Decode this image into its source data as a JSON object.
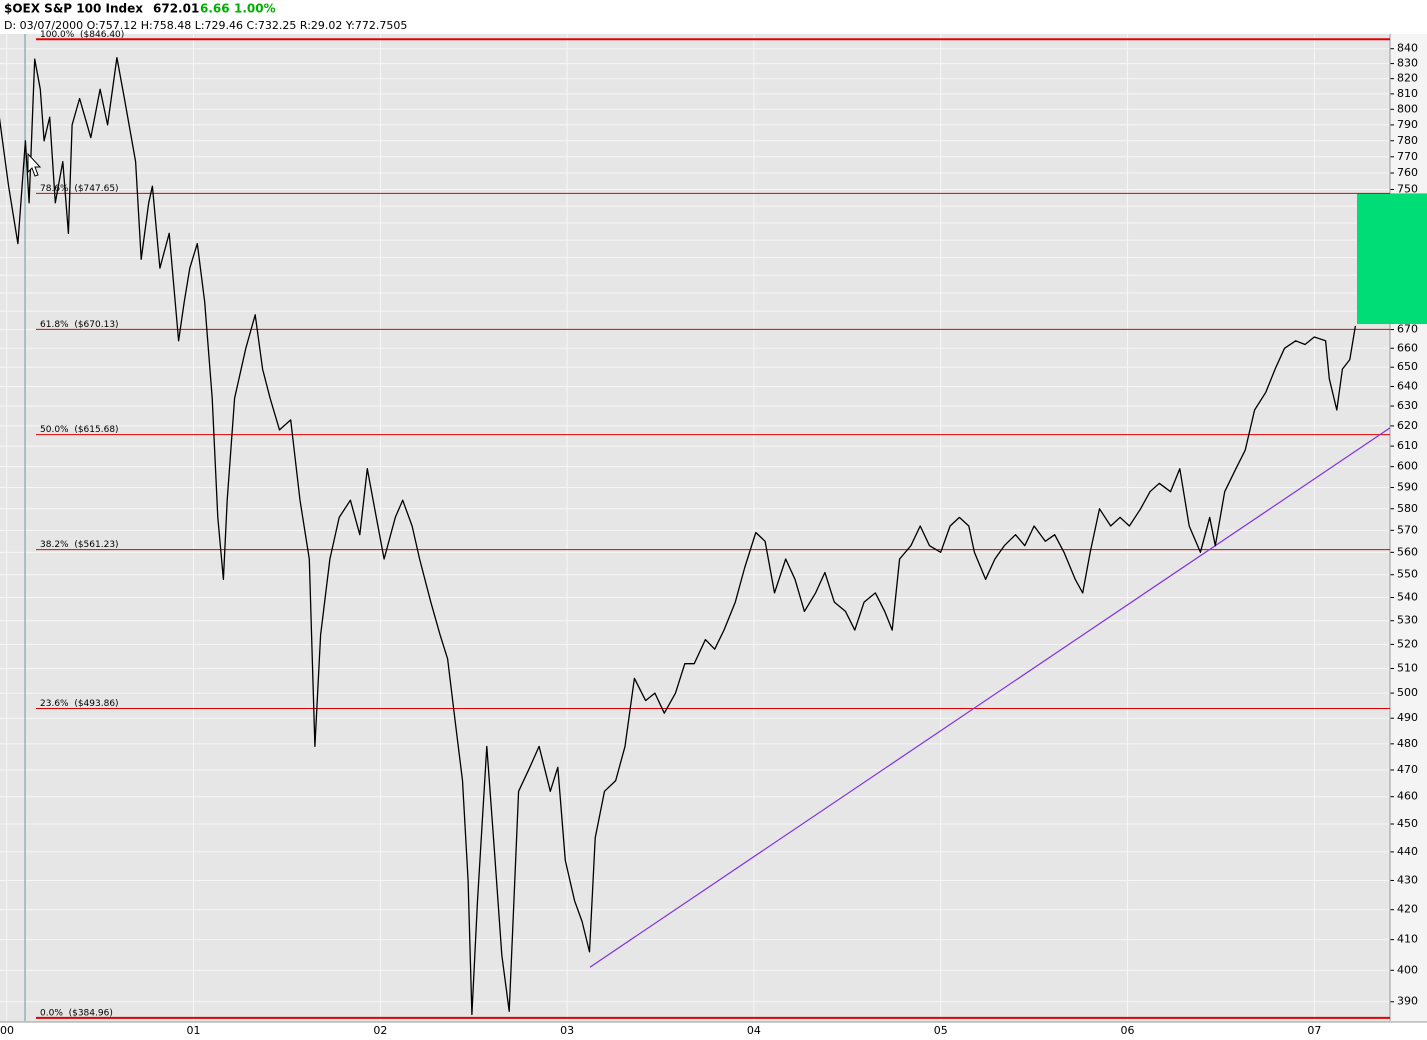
{
  "header": {
    "symbol": "$OEX S&P 100 Index",
    "last": "672.01",
    "change": "6.66",
    "change_pct": "1.00%",
    "details": "D: 03/07/2000 O:757.12 H:758.48 L:729.46 C:732.25 R:29.02 Y:772.7505"
  },
  "chart_data": {
    "type": "line",
    "color": "#000000",
    "log_scale": true,
    "grid": true,
    "xlim": [
      1999.964,
      2007.405
    ],
    "ylim": [
      384,
      850
    ],
    "xticks": [
      {
        "value": 2000,
        "label": "00"
      },
      {
        "value": 2001,
        "label": "01"
      },
      {
        "value": 2002,
        "label": "02"
      },
      {
        "value": 2003,
        "label": "03"
      },
      {
        "value": 2004,
        "label": "04"
      },
      {
        "value": 2005,
        "label": "05"
      },
      {
        "value": 2006,
        "label": "06"
      },
      {
        "value": 2007,
        "label": "07"
      }
    ],
    "yticks": [
      390,
      400,
      410,
      420,
      430,
      440,
      450,
      460,
      470,
      480,
      490,
      500,
      510,
      520,
      530,
      540,
      550,
      560,
      570,
      580,
      590,
      600,
      610,
      620,
      630,
      640,
      650,
      660,
      670,
      680,
      690,
      700,
      710,
      720,
      730,
      740,
      750,
      760,
      770,
      780,
      790,
      800,
      810,
      820,
      830,
      840
    ],
    "x": [
      1999.96,
      2000.01,
      2000.06,
      2000.1,
      2000.12,
      2000.15,
      2000.18,
      2000.2,
      2000.23,
      2000.26,
      2000.3,
      2000.33,
      2000.35,
      2000.39,
      2000.45,
      2000.5,
      2000.54,
      2000.59,
      2000.63,
      2000.69,
      2000.72,
      2000.76,
      2000.78,
      2000.82,
      2000.87,
      2000.92,
      2000.95,
      2000.98,
      2001.02,
      2001.06,
      2001.1,
      2001.13,
      2001.16,
      2001.18,
      2001.22,
      2001.28,
      2001.33,
      2001.37,
      2001.41,
      2001.46,
      2001.52,
      2001.57,
      2001.62,
      2001.65,
      2001.68,
      2001.73,
      2001.78,
      2001.84,
      2001.89,
      2001.93,
      2001.97,
      2002.02,
      2002.08,
      2002.12,
      2002.17,
      2002.21,
      2002.27,
      2002.32,
      2002.36,
      2002.4,
      2002.44,
      2002.47,
      2002.49,
      2002.52,
      2002.57,
      2002.61,
      2002.65,
      2002.69,
      2002.74,
      2002.8,
      2002.85,
      2002.91,
      2002.95,
      2002.99,
      2003.04,
      2003.08,
      2003.12,
      2003.15,
      2003.2,
      2003.26,
      2003.31,
      2003.36,
      2003.42,
      2003.47,
      2003.52,
      2003.58,
      2003.63,
      2003.68,
      2003.74,
      2003.79,
      2003.84,
      2003.9,
      2003.95,
      2004.01,
      2004.06,
      2004.11,
      2004.17,
      2004.22,
      2004.27,
      2004.33,
      2004.38,
      2004.43,
      2004.49,
      2004.54,
      2004.59,
      2004.65,
      2004.7,
      2004.74,
      2004.78,
      2004.84,
      2004.89,
      2004.94,
      2005.0,
      2005.05,
      2005.1,
      2005.15,
      2005.18,
      2005.24,
      2005.29,
      2005.34,
      2005.4,
      2005.45,
      2005.5,
      2005.56,
      2005.61,
      2005.66,
      2005.72,
      2005.76,
      2005.8,
      2005.85,
      2005.91,
      2005.96,
      2006.01,
      2006.07,
      2006.12,
      2006.17,
      2006.23,
      2006.28,
      2006.33,
      2006.39,
      2006.44,
      2006.47,
      2006.52,
      2006.58,
      2006.63,
      2006.68,
      2006.74,
      2006.79,
      2006.84,
      2006.9,
      2006.95,
      2007.0,
      2007.06,
      2007.08,
      2007.12,
      2007.15,
      2007.19,
      2007.22
    ],
    "values": [
      795,
      752,
      718,
      780,
      742,
      833,
      813,
      780,
      795,
      742,
      767,
      724,
      790,
      807,
      782,
      813,
      790,
      834,
      807,
      767,
      709,
      742,
      752,
      704,
      724,
      664,
      685,
      704,
      718,
      685,
      634,
      576,
      548,
      584,
      634,
      660,
      678,
      649,
      634,
      618,
      623,
      584,
      557,
      479,
      524,
      557,
      576,
      584,
      568,
      599,
      580,
      557,
      576,
      584,
      572,
      557,
      538,
      524,
      514,
      489,
      466,
      430,
      386,
      423,
      479,
      441,
      405,
      387,
      462,
      471,
      479,
      462,
      471,
      437,
      423,
      416,
      406,
      445,
      462,
      466,
      479,
      506,
      497,
      500,
      492,
      500,
      512,
      512,
      522,
      518,
      526,
      538,
      553,
      569,
      565,
      542,
      557,
      548,
      534,
      542,
      551,
      538,
      534,
      526,
      538,
      542,
      534,
      526,
      557,
      563,
      572,
      563,
      560,
      572,
      576,
      572,
      560,
      548,
      557,
      563,
      568,
      563,
      572,
      565,
      568,
      560,
      548,
      542,
      560,
      580,
      572,
      576,
      572,
      580,
      588,
      592,
      588,
      599,
      572,
      560,
      576,
      563,
      588,
      599,
      608,
      628,
      637,
      649,
      660,
      664,
      662,
      666,
      664,
      644,
      628,
      649,
      654,
      672
    ],
    "levels": [
      {
        "value": 846.4,
        "label": "100.0%  ($846.40)"
      },
      {
        "value": 747.65,
        "label": "78.6%  ($747.65)"
      },
      {
        "value": 670.13,
        "label": "61.8%  ($670.13)"
      },
      {
        "value": 615.68,
        "label": "50.0%  ($615.68)"
      },
      {
        "value": 561.23,
        "label": "38.2%  ($561.23)"
      },
      {
        "value": 493.86,
        "label": "23.6%  ($493.86)"
      },
      {
        "value": 384.96,
        "label": "0.0%  ($384.96)"
      }
    ],
    "level_color": "#e00000",
    "trendline": {
      "x": [
        2003.122,
        2007.405
      ],
      "values": [
        401,
        619
      ],
      "color": "#8030e0"
    },
    "target_zone": {
      "low": 673,
      "high": 747.65,
      "color": "#00dd77"
    },
    "cursor": {
      "x": 2000.098,
      "color": "#6a9a9a"
    }
  }
}
